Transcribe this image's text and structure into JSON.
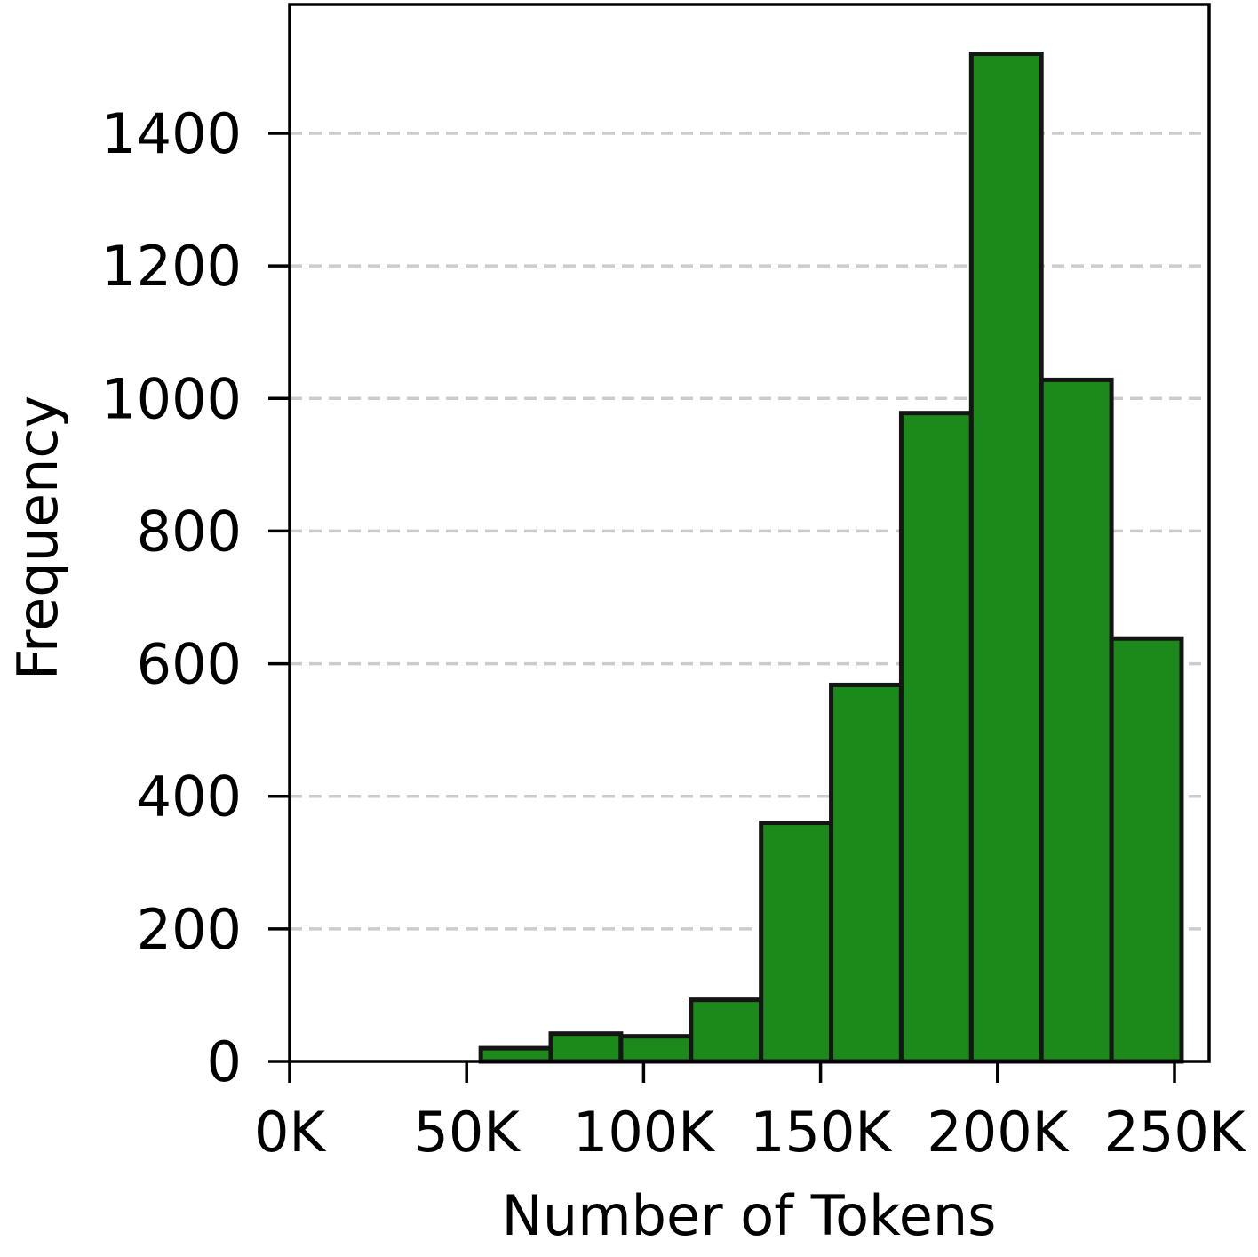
{
  "chart_data": {
    "type": "bar",
    "title": "",
    "xlabel": "Number of Tokens",
    "ylabel": "Frequency",
    "x_ticks": [
      {
        "value": 0,
        "label": "0K"
      },
      {
        "value": 50000,
        "label": "50K"
      },
      {
        "value": 100000,
        "label": "100K"
      },
      {
        "value": 150000,
        "label": "150K"
      },
      {
        "value": 200000,
        "label": "200K"
      },
      {
        "value": 250000,
        "label": "250K"
      }
    ],
    "y_ticks": [
      {
        "value": 0,
        "label": "0"
      },
      {
        "value": 200,
        "label": "200"
      },
      {
        "value": 400,
        "label": "400"
      },
      {
        "value": 600,
        "label": "600"
      },
      {
        "value": 800,
        "label": "800"
      },
      {
        "value": 1000,
        "label": "1000"
      },
      {
        "value": 1200,
        "label": "1200"
      },
      {
        "value": 1400,
        "label": "1400"
      }
    ],
    "xlim": [
      0,
      260000
    ],
    "ylim": [
      0,
      1600
    ],
    "grid": "horizontal dashed",
    "bins": [
      {
        "start": 0,
        "end": 54000,
        "count": 0
      },
      {
        "start": 54000,
        "end": 73800,
        "count": 20
      },
      {
        "start": 73800,
        "end": 93600,
        "count": 42
      },
      {
        "start": 93600,
        "end": 113400,
        "count": 38
      },
      {
        "start": 113400,
        "end": 133200,
        "count": 93
      },
      {
        "start": 133200,
        "end": 153000,
        "count": 360
      },
      {
        "start": 153000,
        "end": 172800,
        "count": 568
      },
      {
        "start": 172800,
        "end": 192600,
        "count": 978
      },
      {
        "start": 192600,
        "end": 212400,
        "count": 1520
      },
      {
        "start": 212400,
        "end": 232200,
        "count": 1028
      },
      {
        "start": 232200,
        "end": 252000,
        "count": 638
      }
    ],
    "colors": {
      "bar_fill": "#1b8a1b",
      "bar_edge": "#151515",
      "grid": "#cccccc",
      "axis": "#000000"
    }
  }
}
